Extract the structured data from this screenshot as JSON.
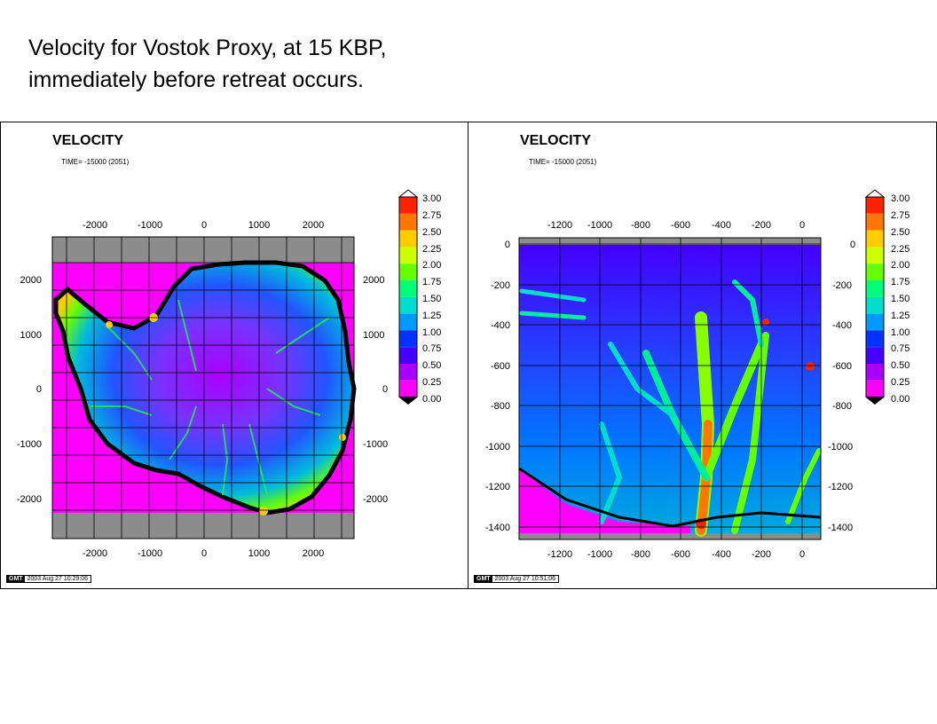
{
  "caption": {
    "line1": "Velocity for Vostok Proxy, at 15 KBP,",
    "line2": "immediately before retreat occurs."
  },
  "colors": {
    "background_magenta": "#ff00ff",
    "frame_gray": "#8c8c8c",
    "scale": [
      "#ff00ff",
      "#aa00ff",
      "#4400ff",
      "#0033ff",
      "#0099ff",
      "#00ddcc",
      "#00ff77",
      "#66ff00",
      "#ccff00",
      "#ffcc00",
      "#ff7700",
      "#ff2200"
    ]
  },
  "panels": [
    {
      "title": "VELOCITY",
      "time": "TIME= -15000 (2051)",
      "gmt_label": "GMT",
      "gmt_date": "2003 Aug 27 10:29:06",
      "x_ticks": [
        "-2000",
        "-1000",
        "0",
        "1000",
        "2000"
      ],
      "y_ticks": [
        "2000",
        "1000",
        "0",
        "-1000",
        "-2000"
      ]
    },
    {
      "title": "VELOCITY",
      "time": "TIME= -15000 (2051)",
      "gmt_label": "GMT",
      "gmt_date": "2003 Aug 27 10:51:06",
      "x_ticks": [
        "-1200",
        "-1000",
        "-800",
        "-600",
        "-400",
        "-200",
        "0"
      ],
      "y_ticks": [
        "0",
        "-200",
        "-400",
        "-600",
        "-800",
        "-1000",
        "-1200",
        "-1400"
      ]
    }
  ],
  "colorbar_labels": [
    "3.00",
    "2.75",
    "2.50",
    "2.25",
    "2.00",
    "1.75",
    "1.50",
    "1.25",
    "1.00",
    "0.75",
    "0.50",
    "0.25",
    "0.00"
  ]
}
